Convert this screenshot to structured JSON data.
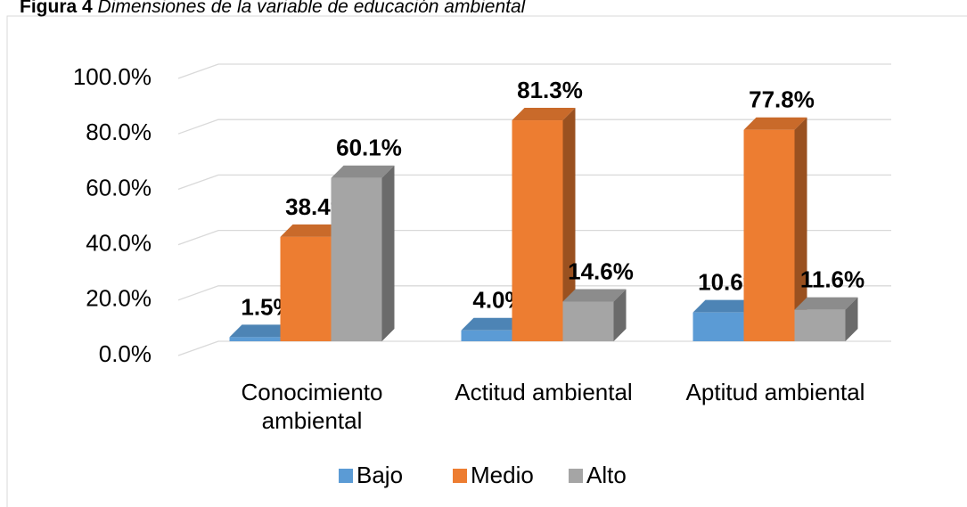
{
  "chart_data": {
    "type": "bar3d",
    "title_label": "Figura 4",
    "title": "Dimensiones de la variable de educación ambiental",
    "categories": [
      "Conocimiento ambiental",
      "Actitud ambiental",
      "Aptitud ambiental"
    ],
    "series": [
      {
        "name": "Bajo",
        "color": "#5b9bd5",
        "values": [
          1.5,
          4.0,
          10.6
        ],
        "value_labels": [
          "1.5%",
          "4.0%",
          "10.6%"
        ]
      },
      {
        "name": "Medio",
        "color": "#ed7d31",
        "values": [
          38.4,
          81.3,
          77.8
        ],
        "value_labels": [
          "38.4%",
          "81.3%",
          "77.8%"
        ]
      },
      {
        "name": "Alto",
        "color": "#a5a5a5",
        "values": [
          60.1,
          14.6,
          11.6
        ],
        "value_labels": [
          "60.1%",
          "14.6%",
          "11.6%"
        ]
      }
    ],
    "ylim": [
      0,
      100
    ],
    "yticks": [
      {
        "value": 0,
        "label": "0.0%"
      },
      {
        "value": 20,
        "label": "20.0%"
      },
      {
        "value": 40,
        "label": "40.0%"
      },
      {
        "value": 60,
        "label": "60.0%"
      },
      {
        "value": 80,
        "label": "80.0%"
      },
      {
        "value": 100,
        "label": "100.0%"
      }
    ],
    "grid": true,
    "legend": "bottom"
  }
}
